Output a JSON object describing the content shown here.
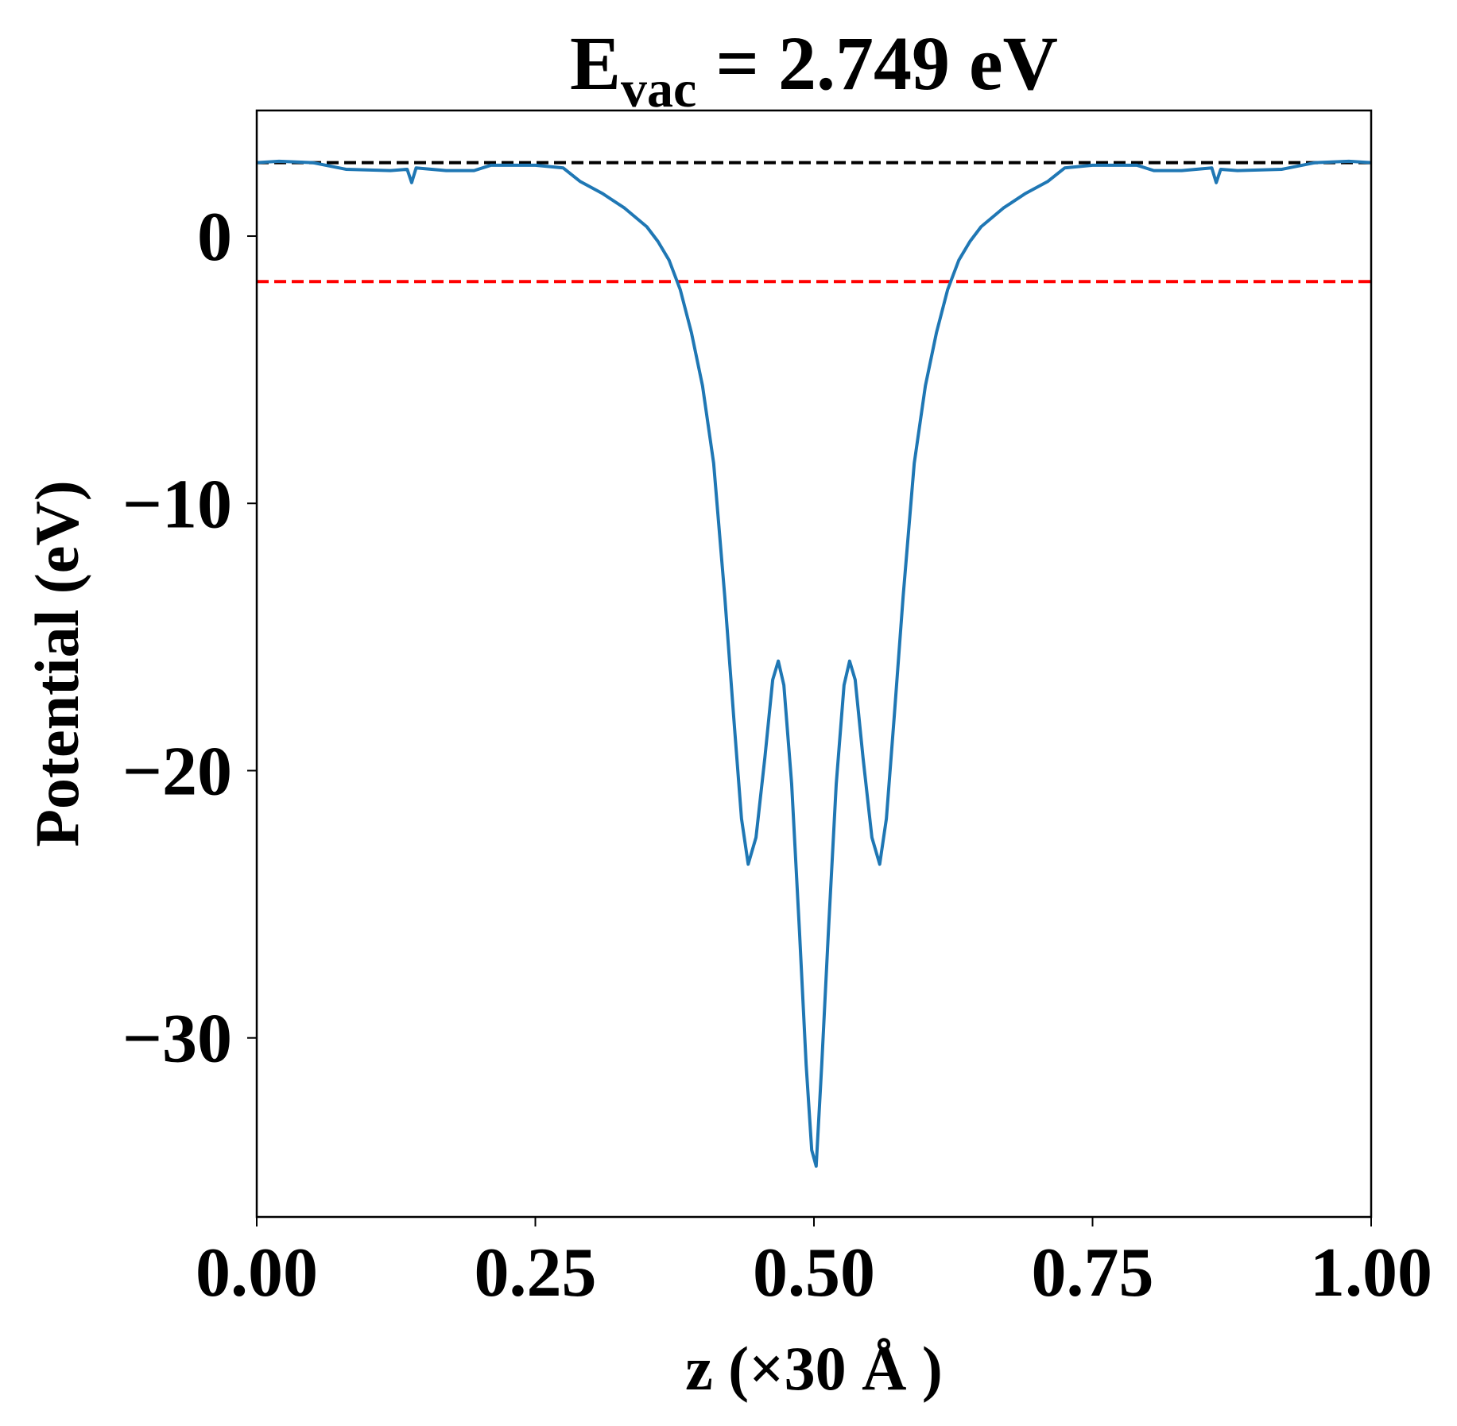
{
  "chart_data": {
    "type": "line",
    "title": {
      "main": "E",
      "sub": "vac",
      "rest": " = 2.749 eV"
    },
    "xlabel": "z (×30 Å )",
    "ylabel": "Potential (eV)",
    "xlim": [
      0,
      1
    ],
    "ylim": [
      -36.7,
      4.7
    ],
    "xticks": [
      {
        "value": 0,
        "label": "0.00"
      },
      {
        "value": 0.25,
        "label": "0.25"
      },
      {
        "value": 0.5,
        "label": "0.50"
      },
      {
        "value": 0.75,
        "label": "0.75"
      },
      {
        "value": 1,
        "label": "1.00"
      }
    ],
    "yticks": [
      0,
      {
        "value": -10,
        "label": "−10"
      },
      {
        "value": -20,
        "label": "−20"
      },
      {
        "value": -30,
        "label": "−30"
      }
    ],
    "hlines": [
      {
        "y": 2.749,
        "color": "#000000"
      },
      {
        "y": -1.7,
        "color": "#ff0000"
      }
    ],
    "series": [
      {
        "color": "#1f77b4",
        "x": [
          0,
          0.02,
          0.05,
          0.08,
          0.12,
          0.135,
          0.139,
          0.143,
          0.17,
          0.195,
          0.21,
          0.25,
          0.275,
          0.29,
          0.31,
          0.33,
          0.35,
          0.36,
          0.37,
          0.38,
          0.39,
          0.4,
          0.41,
          0.42,
          0.428,
          0.435,
          0.441,
          0.448,
          0.456,
          0.463,
          0.468,
          0.473,
          0.48,
          0.487,
          0.493,
          0.498,
          0.502,
          0.507,
          0.513,
          0.52,
          0.527,
          0.532,
          0.537,
          0.544,
          0.552,
          0.559,
          0.565,
          0.572,
          0.58,
          0.59,
          0.6,
          0.61,
          0.62,
          0.63,
          0.64,
          0.65,
          0.67,
          0.69,
          0.71,
          0.725,
          0.75,
          0.79,
          0.805,
          0.83,
          0.857,
          0.861,
          0.865,
          0.88,
          0.92,
          0.95,
          0.98,
          1
        ],
        "values": [
          2.75,
          2.8,
          2.75,
          2.5,
          2.45,
          2.5,
          2.0,
          2.55,
          2.45,
          2.45,
          2.65,
          2.65,
          2.55,
          2.05,
          1.6,
          1.05,
          0.35,
          -0.2,
          -0.9,
          -2.0,
          -3.6,
          -5.6,
          -8.5,
          -13.5,
          -18.0,
          -21.8,
          -23.5,
          -22.5,
          -19.5,
          -16.6,
          -15.9,
          -16.8,
          -20.5,
          -26.0,
          -31.0,
          -34.2,
          -34.8,
          -31.0,
          -26.0,
          -20.5,
          -16.8,
          -15.9,
          -16.6,
          -19.5,
          -22.5,
          -23.5,
          -21.8,
          -18.0,
          -13.5,
          -8.5,
          -5.6,
          -3.6,
          -2.0,
          -0.9,
          -0.2,
          0.35,
          1.05,
          1.6,
          2.05,
          2.55,
          2.65,
          2.65,
          2.45,
          2.45,
          2.55,
          2.0,
          2.5,
          2.45,
          2.5,
          2.75,
          2.8,
          2.75
        ]
      }
    ]
  }
}
